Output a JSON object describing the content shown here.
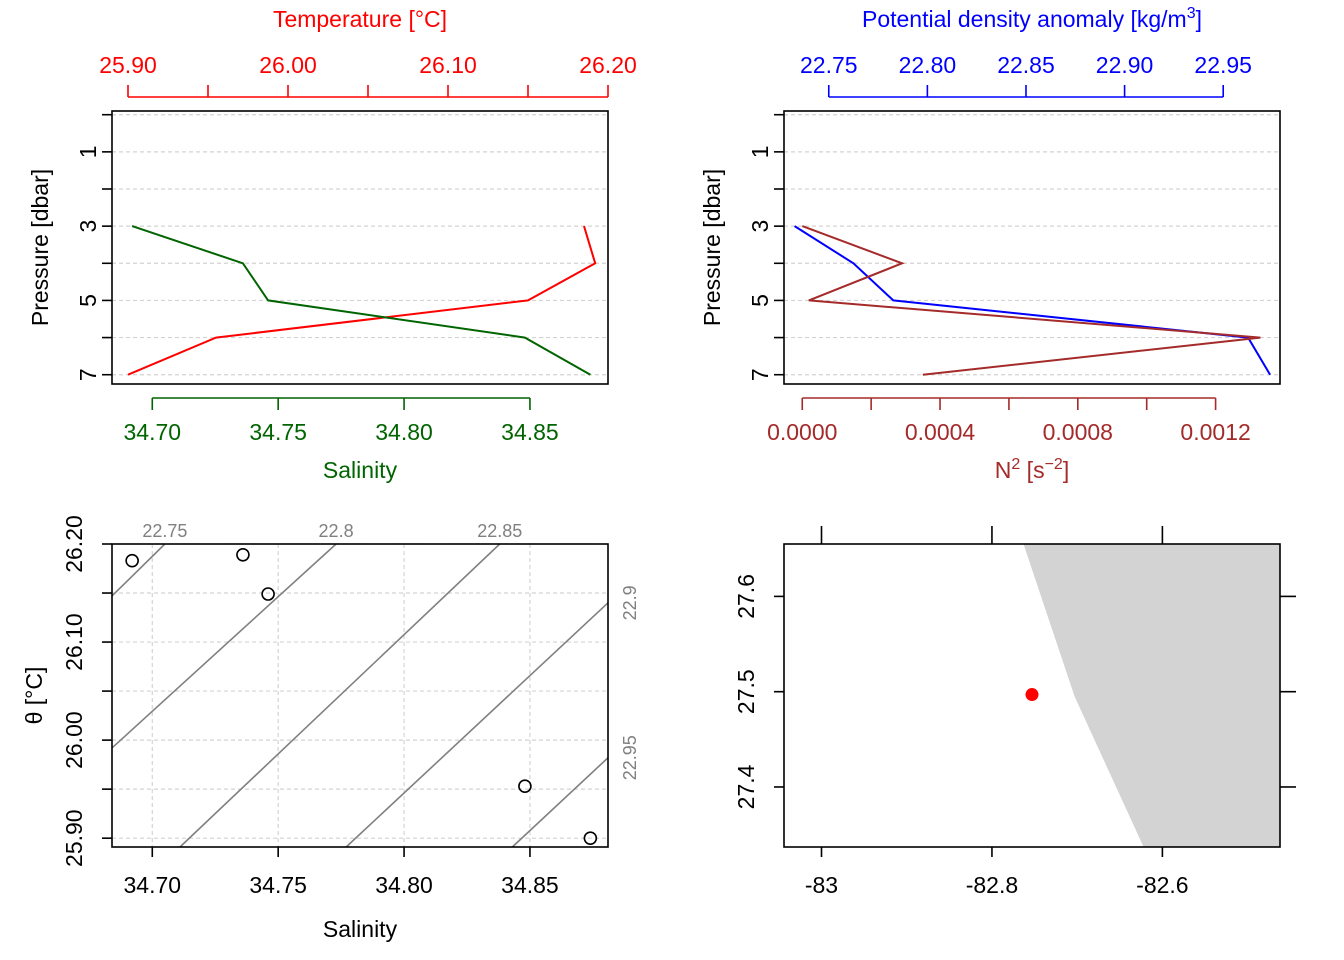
{
  "colors": {
    "temperature": "#ff0000",
    "salinity": "#006400",
    "density": "#0000ff",
    "n2": "#a52a2a",
    "isopycnal": "#808080",
    "grid": "#d3d3d3",
    "land": "#d3d3d3",
    "station": "#ff0000",
    "axis": "#000000"
  },
  "chart_data": [
    {
      "type": "line",
      "panel": "temperature-salinity-profile",
      "y_axis": {
        "label": "Pressure [dbar]",
        "range": [
          7.25,
          -0.1
        ],
        "ticks": [
          1,
          3,
          5,
          7
        ],
        "minor_ticks": [
          0,
          2,
          4,
          6
        ],
        "grid": true
      },
      "top_axis": {
        "label": "Temperature [°C]",
        "range": [
          25.89,
          26.2
        ],
        "ticks": [
          25.9,
          25.95,
          26.0,
          26.05,
          26.1,
          26.15,
          26.2
        ],
        "tick_labels": [
          "25.90",
          "",
          "26.00",
          "",
          "26.10",
          "",
          "26.20"
        ]
      },
      "bottom_axis": {
        "label": "Salinity",
        "range": [
          34.684,
          34.881
        ],
        "ticks": [
          34.7,
          34.75,
          34.8,
          34.85
        ],
        "tick_labels": [
          "34.70",
          "34.75",
          "34.80",
          "34.85"
        ]
      },
      "series": [
        {
          "key": "temperature",
          "axis": "top",
          "pressure": [
            3,
            4,
            5,
            6,
            7
          ],
          "values": [
            26.185,
            26.192,
            26.15,
            25.955,
            25.9
          ]
        },
        {
          "key": "salinity",
          "axis": "bottom",
          "pressure": [
            3,
            4,
            5,
            6,
            7
          ],
          "values": [
            34.692,
            34.736,
            34.746,
            34.848,
            34.874
          ]
        }
      ]
    },
    {
      "type": "line",
      "panel": "density-n2-profile",
      "y_axis": {
        "label": "Pressure [dbar]",
        "range": [
          7.25,
          -0.1
        ],
        "ticks": [
          1,
          3,
          5,
          7
        ],
        "minor_ticks": [
          0,
          2,
          4,
          6
        ],
        "grid": true
      },
      "top_axis": {
        "label": "Potential density anomaly [kg/m3]",
        "label_main": "Potential density anomaly [kg/m",
        "label_sup": "3",
        "label_end": "]",
        "range": [
          22.7273,
          22.9788
        ],
        "ticks": [
          22.75,
          22.8,
          22.85,
          22.9,
          22.95
        ],
        "tick_labels": [
          "22.75",
          "22.80",
          "22.85",
          "22.90",
          "22.95"
        ]
      },
      "bottom_axis": {
        "label": "N2 [s-2]",
        "label_main": "N",
        "label_sup": "2",
        "label_mid": " [s",
        "label_sup2": "−2",
        "label_end": "]",
        "range": [
          -5.3e-05,
          0.001387
        ],
        "ticks": [
          0,
          0.0004,
          0.0008,
          0.0012
        ],
        "minor_ticks": [
          0.0002,
          0.0006,
          0.001
        ],
        "tick_labels": [
          "0.0000",
          "0.0004",
          "0.0008",
          "0.0012"
        ]
      },
      "series": [
        {
          "key": "density",
          "axis": "top",
          "pressure": [
            3,
            4,
            5,
            6,
            7
          ],
          "values": [
            22.7327,
            22.7625,
            22.7827,
            22.9626,
            22.9738
          ]
        },
        {
          "key": "n2",
          "axis": "bottom",
          "pressure": [
            3,
            4,
            5,
            6,
            7
          ],
          "values": [
            0.0,
            0.00029,
            1.9e-05,
            0.00133,
            0.00035
          ]
        }
      ]
    },
    {
      "type": "scatter",
      "panel": "ts-diagram",
      "x_axis": {
        "label": "Salinity",
        "range": [
          34.684,
          34.881
        ],
        "ticks": [
          34.7,
          34.75,
          34.8,
          34.85
        ],
        "tick_labels": [
          "34.70",
          "34.75",
          "34.80",
          "34.85"
        ],
        "grid": true
      },
      "y_axis": {
        "label": "θ [°C]",
        "range": [
          25.891,
          26.2
        ],
        "ticks": [
          25.9,
          25.95,
          26.0,
          26.05,
          26.1,
          26.15,
          26.2
        ],
        "tick_labels": [
          "25.90",
          "",
          "26.00",
          "",
          "26.10",
          "",
          "26.20"
        ],
        "grid": true
      },
      "points": {
        "x": [
          34.692,
          34.736,
          34.746,
          34.848,
          34.874
        ],
        "y": [
          26.183,
          26.189,
          26.149,
          25.953,
          25.9
        ]
      },
      "isopycnals": [
        {
          "label": "22.75",
          "y_at_xmin": 26.147,
          "x_at_ymax": 34.705,
          "label_side": "top"
        },
        {
          "label": "22.8",
          "y_at_xmin": 25.992,
          "x_at_ymax": 34.773,
          "label_side": "top"
        },
        {
          "label": "22.85",
          "x_at_ymin": 34.711,
          "x_at_ymax": 34.838,
          "label_side": "top"
        },
        {
          "label": "22.9",
          "x_at_ymin": 34.777,
          "y_at_xmax": 26.14,
          "label_side": "right"
        },
        {
          "label": "22.95",
          "x_at_ymin": 34.843,
          "y_at_xmax": 25.982,
          "label_side": "right"
        }
      ]
    },
    {
      "type": "map",
      "panel": "station-map",
      "x_axis": {
        "range": [
          -83.044,
          -82.462
        ],
        "ticks": [
          -83,
          -82.8,
          -82.6
        ],
        "tick_labels": [
          "-83",
          "-82.8",
          "-82.6"
        ]
      },
      "y_axis": {
        "range": [
          27.337,
          27.655
        ],
        "ticks": [
          27.4,
          27.5,
          27.6
        ],
        "tick_labels": [
          "27.4",
          "27.5",
          "27.6"
        ]
      },
      "land_polygon": [
        [
          -82.763,
          27.655
        ],
        [
          -82.703,
          27.495
        ],
        [
          -82.622,
          27.337
        ],
        [
          -82.462,
          27.337
        ],
        [
          -82.462,
          27.655
        ]
      ],
      "station": {
        "lon": -82.753,
        "lat": 27.497
      }
    }
  ]
}
